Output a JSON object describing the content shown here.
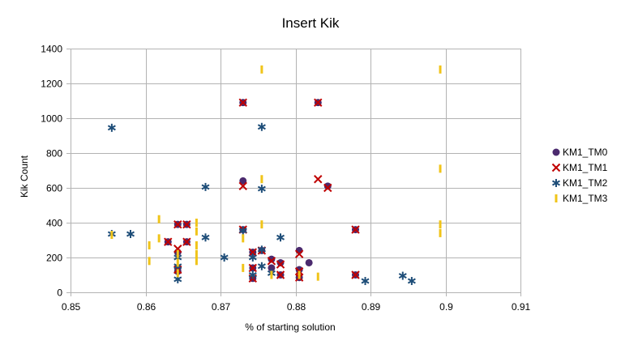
{
  "chart_data": {
    "type": "scatter",
    "title": "Insert Kik",
    "xlabel": "% of starting solution",
    "ylabel": "Kik Count",
    "xlim": [
      0.85,
      0.91
    ],
    "ylim": [
      0,
      1400
    ],
    "x_ticks": [
      "0.85",
      "0.86",
      "0.87",
      "0.88",
      "0.89",
      "0.9",
      "0.91"
    ],
    "y_ticks": [
      "0",
      "200",
      "400",
      "600",
      "800",
      "1000",
      "1200",
      "1400"
    ],
    "grid": true,
    "legend_position": "right",
    "series": [
      {
        "name": "KM1_TM0",
        "marker": "circle",
        "color": "#4b2a6e",
        "points": [
          [
            0.863,
            290
          ],
          [
            0.8643,
            390
          ],
          [
            0.8643,
            230
          ],
          [
            0.8643,
            140
          ],
          [
            0.8643,
            120
          ],
          [
            0.8655,
            390
          ],
          [
            0.8655,
            290
          ],
          [
            0.873,
            1090
          ],
          [
            0.873,
            640
          ],
          [
            0.873,
            360
          ],
          [
            0.8743,
            230
          ],
          [
            0.8743,
            140
          ],
          [
            0.8743,
            80
          ],
          [
            0.8755,
            240
          ],
          [
            0.8768,
            190
          ],
          [
            0.8768,
            140
          ],
          [
            0.878,
            170
          ],
          [
            0.878,
            100
          ],
          [
            0.8805,
            240
          ],
          [
            0.8805,
            130
          ],
          [
            0.8805,
            85
          ],
          [
            0.8818,
            170
          ],
          [
            0.883,
            1090
          ],
          [
            0.8843,
            610
          ],
          [
            0.888,
            360
          ],
          [
            0.888,
            100
          ]
        ]
      },
      {
        "name": "KM1_TM1",
        "marker": "x",
        "color": "#c00000",
        "points": [
          [
            0.863,
            290
          ],
          [
            0.8643,
            390
          ],
          [
            0.8643,
            250
          ],
          [
            0.8643,
            130
          ],
          [
            0.8655,
            390
          ],
          [
            0.8655,
            290
          ],
          [
            0.873,
            1090
          ],
          [
            0.873,
            610
          ],
          [
            0.873,
            360
          ],
          [
            0.8743,
            230
          ],
          [
            0.8743,
            140
          ],
          [
            0.8743,
            80
          ],
          [
            0.8755,
            240
          ],
          [
            0.8768,
            180
          ],
          [
            0.878,
            160
          ],
          [
            0.878,
            100
          ],
          [
            0.8805,
            220
          ],
          [
            0.8805,
            120
          ],
          [
            0.8805,
            85
          ],
          [
            0.883,
            1090
          ],
          [
            0.883,
            650
          ],
          [
            0.8843,
            600
          ],
          [
            0.888,
            360
          ],
          [
            0.888,
            100
          ]
        ]
      },
      {
        "name": "KM1_TM2",
        "marker": "asterisk",
        "color": "#1f4e79",
        "points": [
          [
            0.8555,
            945
          ],
          [
            0.8555,
            335
          ],
          [
            0.858,
            335
          ],
          [
            0.8643,
            200
          ],
          [
            0.8643,
            150
          ],
          [
            0.8643,
            75
          ],
          [
            0.868,
            605
          ],
          [
            0.868,
            315
          ],
          [
            0.8705,
            200
          ],
          [
            0.873,
            355
          ],
          [
            0.8743,
            200
          ],
          [
            0.8743,
            100
          ],
          [
            0.8755,
            950
          ],
          [
            0.8755,
            595
          ],
          [
            0.8755,
            245
          ],
          [
            0.8755,
            150
          ],
          [
            0.8768,
            110
          ],
          [
            0.878,
            315
          ],
          [
            0.8893,
            65
          ],
          [
            0.8943,
            95
          ],
          [
            0.8955,
            65
          ]
        ]
      },
      {
        "name": "KM1_TM3",
        "marker": "dash",
        "color": "#f0c419",
        "points": [
          [
            0.8555,
            330
          ],
          [
            0.8605,
            270
          ],
          [
            0.8605,
            180
          ],
          [
            0.8618,
            420
          ],
          [
            0.8618,
            310
          ],
          [
            0.8643,
            220
          ],
          [
            0.8643,
            170
          ],
          [
            0.8643,
            110
          ],
          [
            0.8668,
            400
          ],
          [
            0.8668,
            350
          ],
          [
            0.8668,
            270
          ],
          [
            0.8668,
            220
          ],
          [
            0.8668,
            180
          ],
          [
            0.873,
            310
          ],
          [
            0.873,
            140
          ],
          [
            0.8755,
            1280
          ],
          [
            0.8755,
            650
          ],
          [
            0.8755,
            390
          ],
          [
            0.8768,
            100
          ],
          [
            0.8805,
            100
          ],
          [
            0.883,
            90
          ],
          [
            0.8993,
            1280
          ],
          [
            0.8993,
            710
          ],
          [
            0.8993,
            390
          ],
          [
            0.8993,
            340
          ]
        ]
      }
    ]
  }
}
